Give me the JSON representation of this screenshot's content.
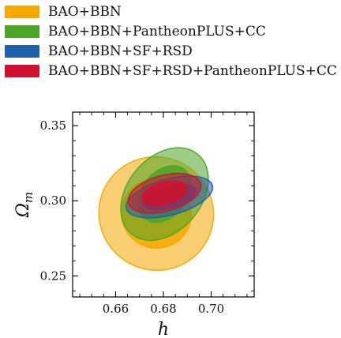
{
  "chart_data": {
    "type": "contour",
    "xlabel": "h",
    "ylabel": "Ω_m",
    "ylabel_main": "Ω",
    "ylabel_sub": "m",
    "xlim": [
      0.642,
      0.718
    ],
    "ylim": [
      0.236,
      0.359
    ],
    "xticks": [
      "0.66",
      "0.68",
      "0.70"
    ],
    "yticks": [
      "0.25",
      "0.30",
      "0.35"
    ],
    "xtick_values": [
      0.66,
      0.68,
      0.7
    ],
    "ytick_values": [
      0.25,
      0.3,
      0.35
    ],
    "legend_position": "top-left, above plot",
    "series": [
      {
        "name": "BAO+BBN",
        "color": "#f5a800",
        "center": [
          0.677,
          0.2915
        ],
        "sigma_h": 0.0095,
        "sigma_om": 0.0154,
        "angle_deg": 62,
        "levels": [
          "1σ",
          "2σ"
        ]
      },
      {
        "name": "BAO+BBN+PantheonPLUS+CC",
        "color": "#4ca428",
        "center": [
          0.6805,
          0.3045
        ],
        "sigma_h": 0.0087,
        "sigma_om": 0.0099,
        "angle_deg": 50,
        "levels": [
          "1σ",
          "2σ"
        ]
      },
      {
        "name": "BAO+BBN+SF+RSD",
        "color": "#1f5fad",
        "center": [
          0.6825,
          0.3025
        ],
        "sigma_h": 0.0075,
        "sigma_om": 0.0048,
        "angle_deg": 15,
        "levels": [
          "1σ",
          "2σ"
        ]
      },
      {
        "name": "BAO+BBN+SF+RSD+PantheonPLUS+CC",
        "color": "#d0122e",
        "center": [
          0.6805,
          0.305
        ],
        "sigma_h": 0.0063,
        "sigma_om": 0.0048,
        "angle_deg": 15,
        "levels": [
          "1σ",
          "2σ"
        ]
      }
    ]
  }
}
